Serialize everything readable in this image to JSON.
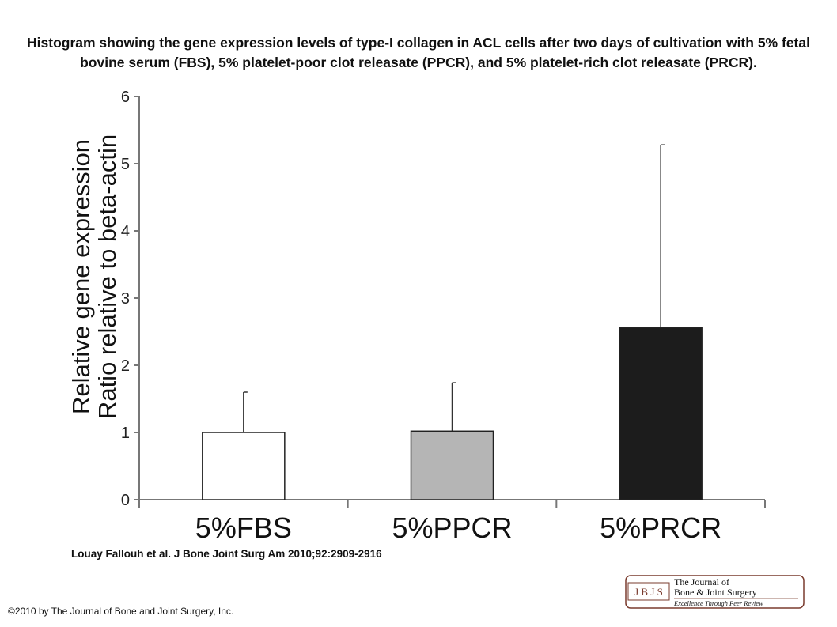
{
  "title": "Histogram showing the gene expression levels of type-I collagen in ACL cells after two days of cultivation with 5% fetal bovine serum (FBS), 5% platelet-poor clot releasate (PPCR), and 5% platelet-rich clot releasate (PRCR).",
  "citation": "Louay Fallouh et al. J Bone Joint Surg Am 2010;92:2909-2916",
  "copyright": "©2010 by The Journal of Bone and Joint Surgery, Inc.",
  "logo": {
    "abbrev": "J B J S",
    "line1": "The Journal of",
    "line2": "Bone & Joint Surgery",
    "tagline": "Excellence Through Peer Review"
  },
  "chart_data": {
    "type": "bar",
    "title": "",
    "ylabel_line1": "Relative gene expression",
    "ylabel_line2": "Ratio relative to beta-actin",
    "xlabel": "",
    "categories": [
      "5%FBS",
      "5%PPCR",
      "5%PRCR"
    ],
    "values": [
      1.0,
      1.02,
      2.56
    ],
    "error_upper": [
      0.6,
      0.72,
      2.72
    ],
    "bar_colors": [
      "#ffffff",
      "#b5b5b5",
      "#1c1c1c"
    ],
    "ylim": [
      0,
      6
    ],
    "yticks": [
      0,
      1,
      2,
      3,
      4,
      5,
      6
    ],
    "grid": false,
    "legend": "none"
  }
}
